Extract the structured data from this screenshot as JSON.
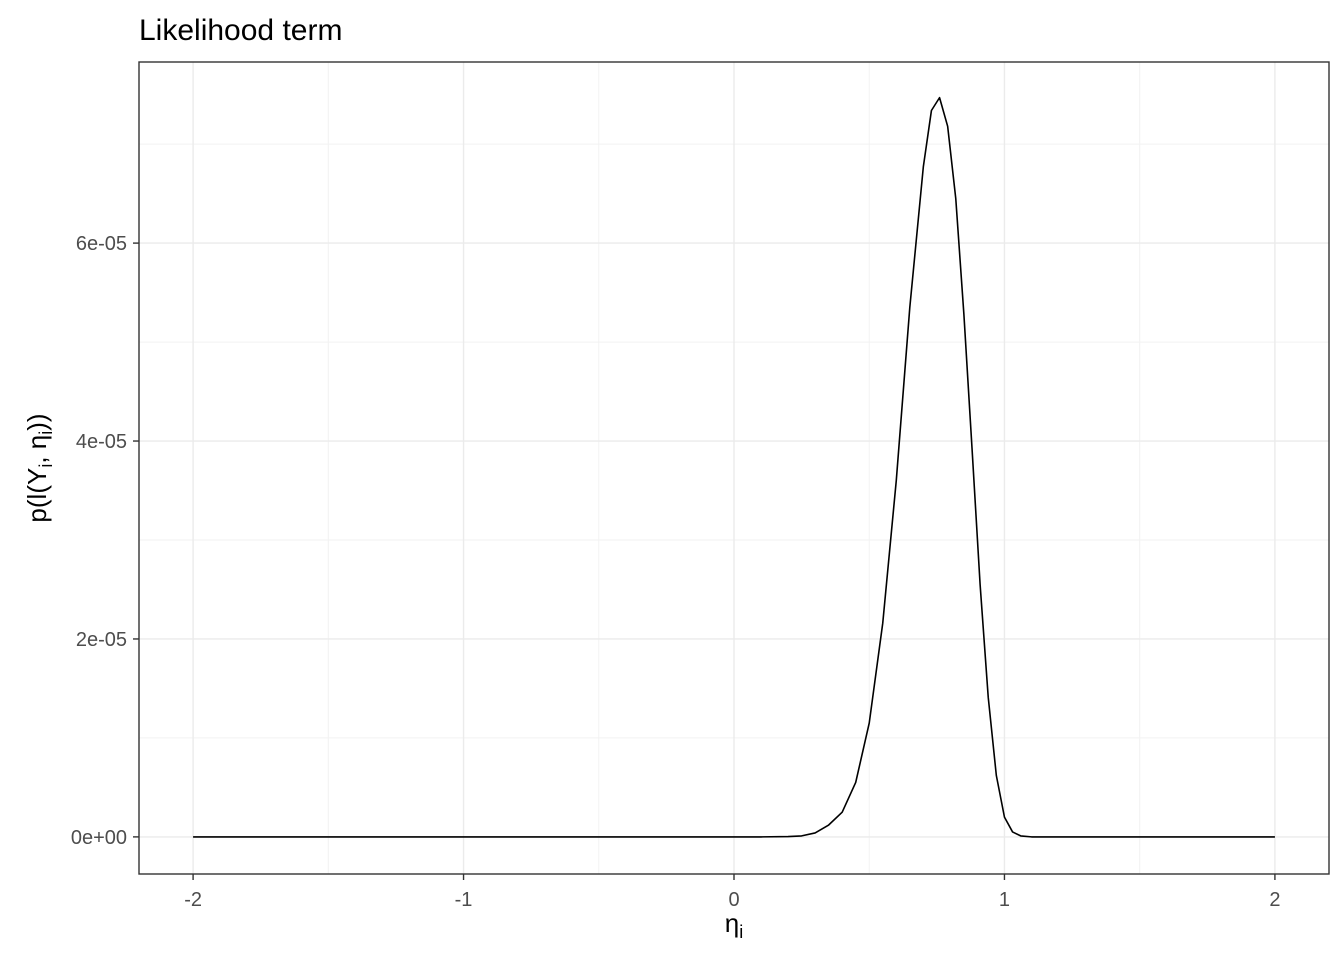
{
  "chart_data": {
    "type": "line",
    "title": "Likelihood term",
    "xlabel": {
      "base": "η",
      "sub": "i"
    },
    "ylabel": {
      "prefix": "p(l(Y",
      "sub1": "i",
      "mid": ", η",
      "sub2": "i",
      "suffix": "))"
    },
    "xlim": [
      -2.2,
      2.2
    ],
    "ylim": [
      -3.75e-06,
      7.83e-05
    ],
    "x_ticks": [
      -2,
      -1,
      0,
      1,
      2
    ],
    "x_tick_labels": [
      "-2",
      "-1",
      "0",
      "1",
      "2"
    ],
    "y_ticks": [
      0,
      2e-05,
      4e-05,
      6e-05
    ],
    "y_tick_labels": [
      "0e+00",
      "2e-05",
      "4e-05",
      "6e-05"
    ],
    "grid": true,
    "legend": "none",
    "line_color": "#000000",
    "series": [
      {
        "x": [
          -2.0,
          -1.5,
          -1.0,
          -0.5,
          0.0,
          0.1,
          0.2,
          0.25,
          0.3,
          0.35,
          0.4,
          0.45,
          0.5,
          0.55,
          0.6,
          0.65,
          0.7,
          0.73,
          0.76,
          0.79,
          0.82,
          0.85,
          0.88,
          0.91,
          0.94,
          0.97,
          1.0,
          1.03,
          1.06,
          1.1,
          1.2,
          1.5,
          2.0
        ],
        "y": [
          0,
          0,
          0,
          0,
          0,
          0,
          3e-08,
          1e-07,
          4e-07,
          1.2e-06,
          2.5e-06,
          5.5e-06,
          1.15e-05,
          2.16e-05,
          3.6e-05,
          5.35e-05,
          6.77e-05,
          7.34e-05,
          7.47e-05,
          7.18e-05,
          6.45e-05,
          5.28e-05,
          3.93e-05,
          2.55e-05,
          1.41e-05,
          6.2e-06,
          2e-06,
          5e-07,
          1e-07,
          0,
          0,
          0,
          0
        ]
      }
    ]
  }
}
